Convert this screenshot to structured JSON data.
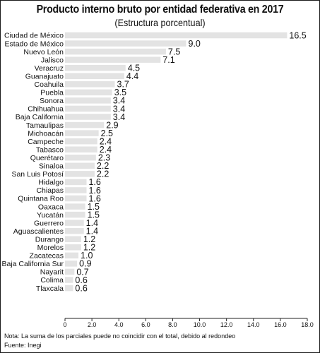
{
  "chart_data": {
    "type": "bar",
    "orientation": "horizontal",
    "title": "Producto interno bruto por entidad federativa en 2017",
    "subtitle": "(Estructura porcentual)",
    "categories": [
      "Ciudad de México",
      "Estado de México",
      "Nuevo León",
      "Jalisco",
      "Veracruz",
      "Guanajuato",
      "Coahuila",
      "Puebla",
      "Sonora",
      "Chihuahua",
      "Baja California",
      "Tamaulipas",
      "Michoacán",
      "Campeche",
      "Tabasco",
      "Querétaro",
      "Sinaloa",
      "San Luis Potosí",
      "Hidalgo",
      "Chiapas",
      "Quintana Roo",
      "Oaxaca",
      "Yucatán",
      "Guerrero",
      "Aguascalientes",
      "Durango",
      "Morelos",
      "Zacatecas",
      "Baja California Sur",
      "Nayarit",
      "Colima",
      "Tlaxcala"
    ],
    "values": [
      16.5,
      9.0,
      7.5,
      7.1,
      4.5,
      4.4,
      3.7,
      3.5,
      3.4,
      3.4,
      3.4,
      2.9,
      2.5,
      2.4,
      2.4,
      2.3,
      2.2,
      2.2,
      1.6,
      1.6,
      1.6,
      1.5,
      1.5,
      1.4,
      1.4,
      1.2,
      1.2,
      1.0,
      0.9,
      0.7,
      0.6,
      0.6
    ],
    "value_labels": [
      "16.5",
      "9.0",
      "7.5",
      "7.1",
      "4.5",
      "4.4",
      "3.7",
      "3.5",
      "3.4",
      "3.4",
      "3.4",
      "2.9",
      "2.5",
      "2.4",
      "2.4",
      "2.3",
      "2.2",
      "2.2",
      "1.6",
      "1.6",
      "1.6",
      "1.5",
      "1.5",
      "1.4",
      "1.4",
      "1.2",
      "1.2",
      "1.0",
      "0.9",
      "0.7",
      "0.6",
      "0.6"
    ],
    "xlim": [
      0,
      18
    ],
    "xticks": [
      0,
      2,
      4,
      6,
      8,
      10,
      12,
      14,
      16,
      18
    ],
    "xtick_labels": [
      "0",
      "2.0",
      "4.0",
      "6.0",
      "8.0",
      "10.0",
      "12.0",
      "14.0",
      "16.0",
      "18.0"
    ],
    "grid": false,
    "bar_color": "#e3e3e3",
    "note": "Nota: La suma de los parciales puede no coincidir con el total, debido al redondeo",
    "source": "Fuente: Inegi"
  }
}
